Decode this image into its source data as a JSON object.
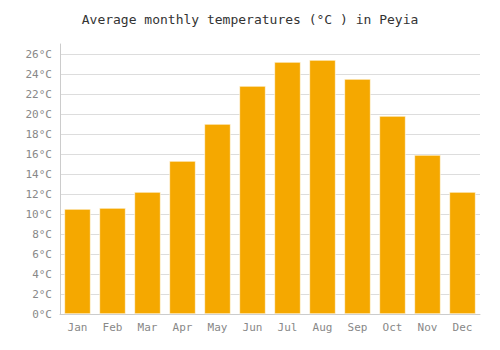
{
  "chart_data": {
    "type": "bar",
    "title": "Average monthly temperatures (°C ) in Peyia",
    "categories": [
      "Jan",
      "Feb",
      "Mar",
      "Apr",
      "May",
      "Jun",
      "Jul",
      "Aug",
      "Sep",
      "Oct",
      "Nov",
      "Dec"
    ],
    "values": [
      10.5,
      10.6,
      12.2,
      15.3,
      19.0,
      22.8,
      25.2,
      25.4,
      23.5,
      19.8,
      15.9,
      12.2
    ],
    "color": "#F5A800",
    "ylim": [
      0,
      27
    ],
    "yticks": [
      {
        "value": 0,
        "label": "0°C"
      },
      {
        "value": 2,
        "label": "2°C"
      },
      {
        "value": 4,
        "label": "4°C"
      },
      {
        "value": 6,
        "label": "6°C"
      },
      {
        "value": 8,
        "label": "8°C"
      },
      {
        "value": 10,
        "label": "10°C"
      },
      {
        "value": 12,
        "label": "12°C"
      },
      {
        "value": 14,
        "label": "14°C"
      },
      {
        "value": 16,
        "label": "16°C"
      },
      {
        "value": 18,
        "label": "18°C"
      },
      {
        "value": 20,
        "label": "20°C"
      },
      {
        "value": 22,
        "label": "22°C"
      },
      {
        "value": 24,
        "label": "24°C"
      },
      {
        "value": 26,
        "label": "26°C"
      }
    ],
    "grid": true
  }
}
